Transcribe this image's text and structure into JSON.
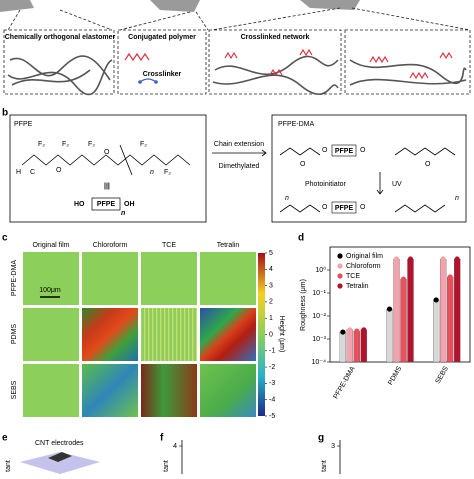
{
  "panel_a": {
    "elastomer": "Chemically orthogonal elastomer",
    "polymer": "Conjugated polymer",
    "crosslinker": "Crosslinker",
    "network": "Crosslinked network"
  },
  "panel_b": {
    "label": "b",
    "left_title": "PFPE",
    "right_title": "PFPE-DMA",
    "arrow_top": "Chain extension",
    "arrow_bottom": "Dimethylated",
    "photoinitiator": "Photoinitiator",
    "uv": "UV",
    "atoms": [
      "F₂",
      "F₂",
      "F₂",
      "O",
      "F₂",
      "O",
      "n",
      "H",
      "C",
      "F₂",
      "|||",
      "HO",
      "PFPE",
      "OH",
      "n",
      "O",
      "PFPE",
      "O",
      "O",
      "PFPE",
      "O",
      "n",
      "n",
      "O",
      "O"
    ]
  },
  "panel_c": {
    "label": "c",
    "columns": [
      "Original film",
      "Chloroform",
      "TCE",
      "Tetralin"
    ],
    "rows": [
      "PFPE-DMA",
      "PDMS",
      "SEBS"
    ],
    "scale_bar": "100μm",
    "colorbar": {
      "label": "Height (μm)",
      "clim": [
        -5,
        5
      ],
      "ticks": [
        5,
        4,
        3,
        2,
        1,
        0,
        -1,
        -2,
        -3,
        -4,
        -5
      ]
    }
  },
  "panel_d": {
    "label": "d",
    "type": "bar",
    "y_label": "Roughness (μm)",
    "log_scale": true,
    "categories": [
      "PFPE-DMA",
      "PDMS",
      "SEBS"
    ],
    "series": [
      {
        "name": "Original film",
        "color": "#d8d8d8",
        "values": [
          0.002,
          0.02,
          0.05
        ]
      },
      {
        "name": "Chloroform",
        "color": "#f2a3ad",
        "values": [
          0.0025,
          3,
          3
        ]
      },
      {
        "name": "TCE",
        "color": "#e8505b",
        "values": [
          0.0022,
          0.4,
          0.5
        ]
      },
      {
        "name": "Tetralin",
        "color": "#b3122d",
        "values": [
          0.0025,
          3,
          3
        ]
      }
    ],
    "ylim": [
      0.0001,
      10
    ],
    "yticks": [
      {
        "value": 0.0001,
        "label": "10⁻⁴"
      },
      {
        "value": 0.001,
        "label": "10⁻³"
      },
      {
        "value": 0.01,
        "label": "10⁻²"
      },
      {
        "value": 0.1,
        "label": "10⁻¹"
      },
      {
        "value": 1,
        "label": "10⁰"
      }
    ]
  },
  "panel_e": {
    "label": "e",
    "electrodes": "CNT electrodes",
    "y_label": "tant"
  },
  "panel_f": {
    "label": "f",
    "y_label": "tant",
    "yticks": [
      4
    ]
  },
  "panel_g": {
    "label": "g",
    "y_label": "tant",
    "yticks": [
      3
    ]
  }
}
